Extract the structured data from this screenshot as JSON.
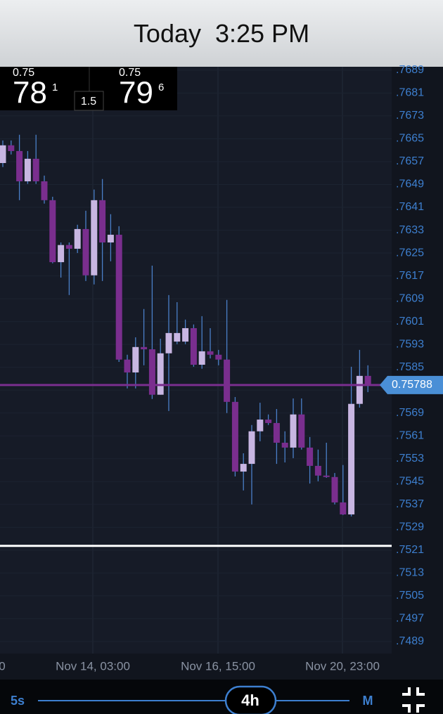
{
  "header": {
    "title": "Today  3:25 PM"
  },
  "quote": {
    "bid": {
      "size": "0.75",
      "big": "78",
      "pip": "1"
    },
    "spread": "1.5",
    "ask": {
      "size": "0.75",
      "big": "79",
      "pip": "6"
    }
  },
  "chart_data": {
    "type": "candlestick",
    "open": [
      0.76565,
      0.76627,
      0.76607,
      0.76501,
      0.7658,
      0.76501,
      0.76435,
      0.76218,
      0.76278,
      0.76265,
      0.76334,
      0.76172,
      0.76435,
      0.76287,
      0.76314,
      0.75877,
      0.75832,
      0.75921,
      0.75913,
      0.75754,
      0.75899,
      0.7594,
      0.7594,
      0.75987,
      0.75859,
      0.75906,
      0.75894,
      0.75877,
      0.75729,
      0.75485,
      0.75512,
      0.75626,
      0.75667,
      0.75655,
      0.75586,
      0.75569,
      0.75685,
      0.75569,
      0.75505,
      0.75471,
      0.75466,
      0.75377,
      0.75335,
      0.75722,
      0.7582
    ],
    "high": [
      0.76644,
      0.76644,
      0.76664,
      0.76607,
      0.76664,
      0.76521,
      0.76447,
      0.76287,
      0.76287,
      0.76349,
      0.76398,
      0.76472,
      0.76509,
      0.76386,
      0.76344,
      0.75894,
      0.75955,
      0.76054,
      0.76206,
      0.7595,
      0.76103,
      0.76078,
      0.76017,
      0.76,
      0.76029,
      0.75987,
      0.75911,
      0.76086,
      0.75746,
      0.75549,
      0.75648,
      0.75726,
      0.75685,
      0.75704,
      0.75626,
      0.75741,
      0.75741,
      0.75606,
      0.75562,
      0.75586,
      0.7548,
      0.75508,
      0.75852,
      0.75911,
      0.75857
    ],
    "low": [
      0.76551,
      0.76595,
      0.76435,
      0.76492,
      0.76492,
      0.76423,
      0.76214,
      0.76164,
      0.76103,
      0.7625,
      0.76152,
      0.7614,
      0.76152,
      0.76221,
      0.75869,
      0.75776,
      0.75776,
      0.75857,
      0.75739,
      0.75754,
      0.75697,
      0.75931,
      0.75931,
      0.75852,
      0.75845,
      0.75881,
      0.75857,
      0.7569,
      0.75468,
      0.75419,
      0.7537,
      0.75591,
      0.75648,
      0.75512,
      0.75517,
      0.75532,
      0.75562,
      0.75443,
      0.75451,
      0.75463,
      0.7537,
      0.75333,
      0.75328,
      0.75709,
      0.75763
    ],
    "close": [
      0.76627,
      0.76607,
      0.76501,
      0.7658,
      0.76501,
      0.76435,
      0.76218,
      0.76278,
      0.76265,
      0.76334,
      0.76172,
      0.76435,
      0.76287,
      0.76314,
      0.75877,
      0.75832,
      0.75921,
      0.75913,
      0.75754,
      0.75899,
      0.7597,
      0.7597,
      0.75987,
      0.75859,
      0.75906,
      0.75894,
      0.75877,
      0.75729,
      0.75485,
      0.75512,
      0.75626,
      0.75667,
      0.75655,
      0.75586,
      0.75569,
      0.75685,
      0.75569,
      0.75505,
      0.75471,
      0.75466,
      0.75377,
      0.75335,
      0.75722,
      0.7582,
      0.7579
    ],
    "up_color": "#c8b6e2",
    "down_color": "#7a2e8e",
    "ylim": [
      0.74848,
      0.76902
    ],
    "yticks": [
      {
        "value": 0.7689,
        "label": ".7689"
      },
      {
        "value": 0.7681,
        "label": ".7681"
      },
      {
        "value": 0.7673,
        "label": ".7673"
      },
      {
        "value": 0.7665,
        "label": ".7665"
      },
      {
        "value": 0.7657,
        "label": ".7657"
      },
      {
        "value": 0.7649,
        "label": ".7649"
      },
      {
        "value": 0.7641,
        "label": ".7641"
      },
      {
        "value": 0.7633,
        "label": ".7633"
      },
      {
        "value": 0.7625,
        "label": ".7625"
      },
      {
        "value": 0.7617,
        "label": ".7617"
      },
      {
        "value": 0.7609,
        "label": ".7609"
      },
      {
        "value": 0.7601,
        "label": ".7601"
      },
      {
        "value": 0.7593,
        "label": ".7593"
      },
      {
        "value": 0.7585,
        "label": ".7585"
      },
      {
        "value": 0.7577,
        "label": ".7577"
      },
      {
        "value": 0.7569,
        "label": ".7569"
      },
      {
        "value": 0.7561,
        "label": ".7561"
      },
      {
        "value": 0.7553,
        "label": ".7553"
      },
      {
        "value": 0.7545,
        "label": ".7545"
      },
      {
        "value": 0.7537,
        "label": ".7537"
      },
      {
        "value": 0.7529,
        "label": ".7529"
      },
      {
        "value": 0.7521,
        "label": ".7521"
      },
      {
        "value": 0.7513,
        "label": ".7513"
      },
      {
        "value": 0.7505,
        "label": ".7505"
      },
      {
        "value": 0.7497,
        "label": ".7497"
      },
      {
        "value": 0.7489,
        "label": ".7489"
      }
    ],
    "x_labels": [
      "0",
      "Nov 14, 03:00",
      "Nov 16, 15:00",
      "Nov 20, 23:00"
    ],
    "current_price": 0.75788,
    "current_color": "#7a2e8e",
    "tag_color": "#4a8fd6",
    "level_line": 0.75225,
    "level_color": "#ffffff"
  },
  "controls": {
    "timeframes": [
      "5s",
      "4h",
      "M"
    ]
  }
}
